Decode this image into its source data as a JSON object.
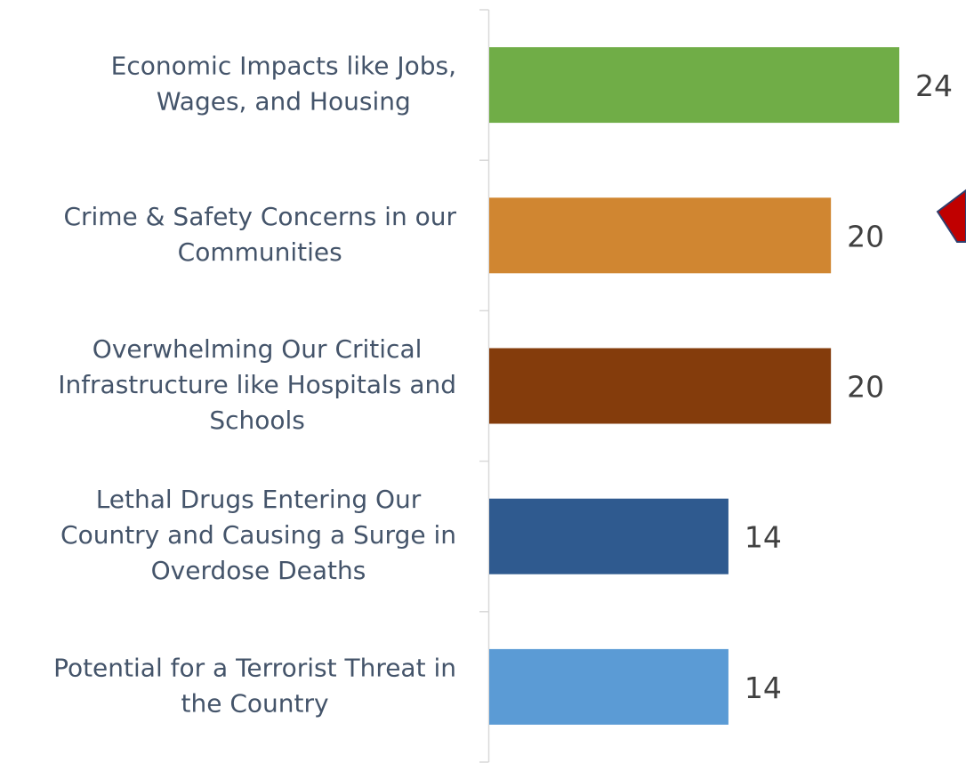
{
  "chart_data": {
    "type": "bar",
    "orientation": "horizontal",
    "categories": [
      "Economic Impacts like Jobs, Wages, and Housing",
      "Crime & Safety Concerns in our Communities",
      "Overwhelming Our Critical Infrastructure like Hospitals and Schools",
      "Lethal Drugs Entering Our Country and Causing a Surge in Overdose Deaths",
      "Potential for a Terrorist Threat in the Country"
    ],
    "category_lines": [
      [
        "Economic Impacts like Jobs,",
        "Wages, and Housing"
      ],
      [
        "Crime & Safety Concerns in our",
        "Communities"
      ],
      [
        "Overwhelming Our Critical",
        "Infrastructure like Hospitals and",
        "Schools"
      ],
      [
        "Lethal Drugs Entering Our",
        "Country and Causing a Surge in",
        "Overdose Deaths"
      ],
      [
        "Potential for a Terrorist Threat in",
        "the Country"
      ]
    ],
    "values": [
      24,
      20,
      20,
      14,
      14
    ],
    "data_labels": [
      "24",
      "20",
      "20",
      "14",
      "14"
    ],
    "colors": [
      "#70ad47",
      "#d08631",
      "#843c0c",
      "#2f5a8f",
      "#5b9bd5"
    ],
    "xlim": [
      0,
      24
    ],
    "title": "",
    "xlabel": "",
    "ylabel": "",
    "legend": "none",
    "grid": false
  },
  "decoration": {
    "arrow_fill": "#c00000",
    "arrow_stroke": "#2f3f6e"
  }
}
